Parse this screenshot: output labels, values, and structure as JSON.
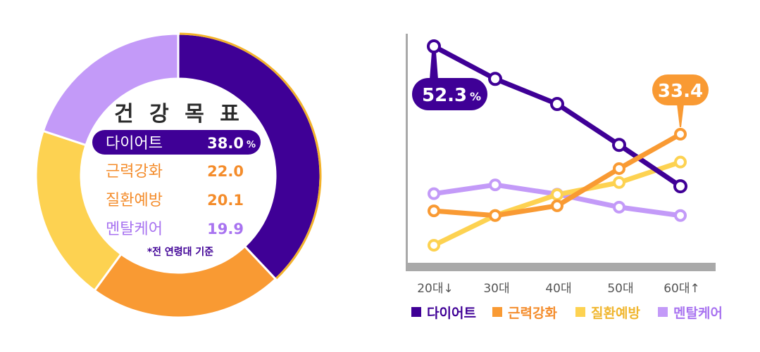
{
  "colors": {
    "diet": "#3F0096",
    "strength": "#F99A33",
    "disease": "#FDD251",
    "mental": "#C39AF8",
    "disease_text": "#F0B62E",
    "mental_text": "#A873F0",
    "strength_text": "#F48C2B",
    "title_text": "#2B2B2B",
    "note_text": "#3F0096",
    "axis": "#A9A9A9",
    "outline": "#F3B22A"
  },
  "chart_data": [
    {
      "type": "pie",
      "variant": "donut",
      "title": "건 강 목 표",
      "note": "*전 연령대 기준",
      "unit": "%",
      "start": "top",
      "direction": "clockwise",
      "categories": [
        "다이어트",
        "근력강화",
        "질환예방",
        "멘탈케어"
      ],
      "values": [
        38.0,
        22.0,
        20.1,
        19.9
      ],
      "value_labels": [
        "38.0",
        "22.0",
        "20.1",
        "19.9"
      ],
      "unit_label": "%",
      "series_keys": [
        "diet",
        "strength",
        "disease",
        "mental"
      ],
      "highlight": "다이어트"
    },
    {
      "type": "line",
      "categories": [
        "20대↓",
        "30대",
        "40대",
        "50대",
        "60대↑"
      ],
      "ylabel": "",
      "xlabel": "",
      "ylim": [
        4.5,
        57
      ],
      "grid": false,
      "legend": "bottom",
      "series": [
        {
          "name": "다이어트",
          "key": "diet",
          "values": [
            52.3,
            45.3,
            39.9,
            31.1,
            22.2
          ]
        },
        {
          "name": "근력강화",
          "key": "strength",
          "values": [
            16.9,
            15.9,
            18.0,
            26.0,
            33.4
          ]
        },
        {
          "name": "질환예방",
          "key": "disease",
          "values": [
            9.5,
            15.9,
            20.4,
            23.0,
            27.4
          ]
        },
        {
          "name": "멘탈케어",
          "key": "mental",
          "values": [
            20.6,
            22.5,
            20.5,
            17.7,
            15.9
          ]
        }
      ],
      "annotations": [
        {
          "series": "diet",
          "index": 0,
          "text": "52.3",
          "unit": "%",
          "position": "below"
        },
        {
          "series": "strength",
          "index": 4,
          "text": "33.4",
          "unit": "",
          "position": "above"
        }
      ]
    }
  ]
}
